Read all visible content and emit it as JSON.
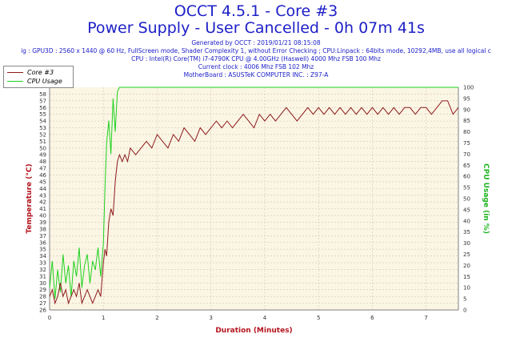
{
  "header": {
    "title": "OCCT 4.5.1 - Core #3",
    "subtitle": "Power Supply - User Cancelled - 0h 07m 41s",
    "info": [
      "Generated by OCCT : 2019/01/21 08:15:08",
      "ig : GPU3D : 2560 x 1440 @ 60 Hz, FullScreen mode, Shader Complexity 1, without Error Checking ; CPU:Linpack : 64bits mode, 10292,4MB, use all logical c",
      "CPU : Intel(R) Core(TM) i7-4790K CPU @ 4.00GHz (Haswell) 4000 Mhz FSB 100 Mhz",
      "Current clock : 4006 Mhz FSB 102 Mhz",
      "MotherBoard : ASUSTeK COMPUTER INC. : Z97-A"
    ]
  },
  "colors": {
    "title": "#1e20c8",
    "axis_label": "#b4141e",
    "right_axis_label": "#1eb41e",
    "plot_bg": "#fbf5e4",
    "grid": "#d2c8b4",
    "core_line": "#8c1a1a",
    "cpu_line": "#1ed21e"
  },
  "chart_data": {
    "type": "line",
    "xlabel": "Duration (Minutes)",
    "ylabel": "Temperature (°C)",
    "y2label": "CPU Usage (in %)",
    "xlim": [
      0,
      7.6
    ],
    "ylim": [
      26,
      59
    ],
    "y2lim": [
      0,
      100
    ],
    "xticks": [
      0,
      1,
      2,
      3,
      4,
      5,
      6,
      7
    ],
    "yticks": [
      26,
      27,
      28,
      29,
      30,
      31,
      32,
      33,
      34,
      35,
      36,
      37,
      38,
      39,
      40,
      41,
      42,
      43,
      44,
      45,
      46,
      47,
      48,
      49,
      50,
      51,
      52,
      53,
      54,
      55,
      56,
      57,
      58
    ],
    "y2ticks": [
      0,
      5,
      10,
      15,
      20,
      25,
      30,
      35,
      40,
      45,
      50,
      55,
      60,
      65,
      70,
      75,
      80,
      85,
      90,
      95,
      100
    ],
    "grid": true,
    "legend": "top-left",
    "series": [
      {
        "name": "Core #3",
        "axis": "left",
        "x": [
          0,
          0.05,
          0.1,
          0.15,
          0.2,
          0.25,
          0.3,
          0.35,
          0.4,
          0.45,
          0.5,
          0.55,
          0.6,
          0.65,
          0.7,
          0.75,
          0.8,
          0.85,
          0.9,
          0.95,
          1.0,
          1.03,
          1.06,
          1.1,
          1.14,
          1.18,
          1.22,
          1.26,
          1.3,
          1.35,
          1.4,
          1.45,
          1.5,
          1.6,
          1.7,
          1.8,
          1.9,
          2.0,
          2.1,
          2.2,
          2.3,
          2.4,
          2.5,
          2.6,
          2.7,
          2.8,
          2.9,
          3.0,
          3.1,
          3.2,
          3.3,
          3.4,
          3.5,
          3.6,
          3.7,
          3.8,
          3.9,
          4.0,
          4.1,
          4.2,
          4.3,
          4.4,
          4.5,
          4.6,
          4.7,
          4.8,
          4.9,
          5.0,
          5.1,
          5.2,
          5.3,
          5.4,
          5.5,
          5.6,
          5.7,
          5.8,
          5.9,
          6.0,
          6.1,
          6.2,
          6.3,
          6.4,
          6.5,
          6.6,
          6.7,
          6.8,
          6.9,
          7.0,
          7.1,
          7.2,
          7.3,
          7.4,
          7.5,
          7.6
        ],
        "values": [
          28,
          29,
          27,
          28,
          30,
          28,
          29,
          27,
          28,
          29,
          28,
          30,
          27,
          28,
          29,
          28,
          27,
          28,
          29,
          28,
          33,
          35,
          34,
          39,
          41,
          40,
          45,
          48,
          49,
          48,
          49,
          48,
          50,
          49,
          50,
          51,
          50,
          52,
          51,
          50,
          52,
          51,
          53,
          52,
          51,
          53,
          52,
          53,
          54,
          53,
          54,
          53,
          54,
          55,
          54,
          53,
          55,
          54,
          55,
          54,
          55,
          56,
          55,
          54,
          55,
          56,
          55,
          56,
          55,
          56,
          55,
          56,
          55,
          56,
          55,
          56,
          55,
          56,
          55,
          56,
          55,
          56,
          55,
          56,
          56,
          55,
          56,
          56,
          55,
          56,
          57,
          57,
          55,
          56
        ]
      },
      {
        "name": "CPU Usage",
        "axis": "right",
        "x": [
          0,
          0.05,
          0.1,
          0.15,
          0.2,
          0.25,
          0.3,
          0.35,
          0.4,
          0.45,
          0.5,
          0.55,
          0.6,
          0.65,
          0.7,
          0.75,
          0.8,
          0.85,
          0.9,
          0.95,
          1.0,
          1.03,
          1.06,
          1.1,
          1.14,
          1.18,
          1.22,
          1.26,
          1.3,
          7.6
        ],
        "values": [
          10,
          22,
          5,
          18,
          8,
          25,
          12,
          20,
          6,
          22,
          15,
          28,
          10,
          20,
          25,
          12,
          22,
          18,
          28,
          15,
          30,
          55,
          75,
          85,
          70,
          95,
          80,
          98,
          100,
          100
        ]
      }
    ]
  }
}
